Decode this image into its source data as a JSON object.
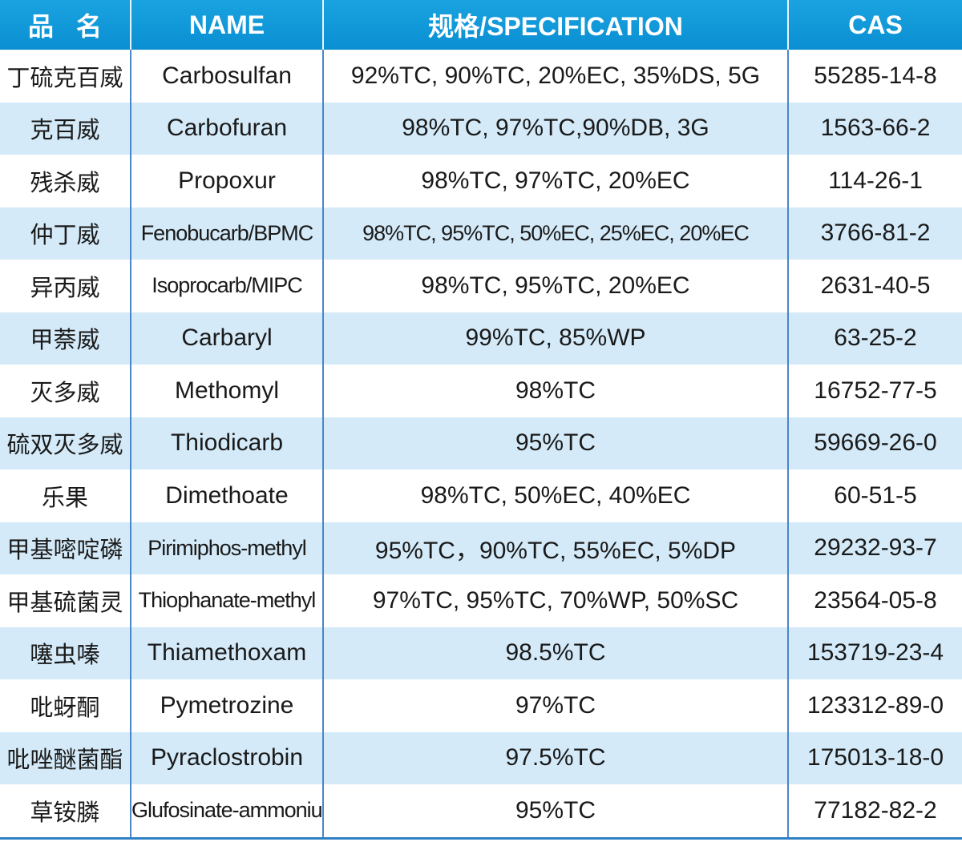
{
  "header": [
    "品名",
    "NAME",
    "规格/SPECIFICATION",
    "CAS"
  ],
  "colors": {
    "header": "#0a96d6",
    "alt_row": "#d4eaf8",
    "divider": "#4a86c8"
  },
  "rows": [
    [
      "丁硫克百威",
      "Carbosulfan",
      "92%TC, 90%TC, 20%EC, 35%DS, 5G",
      "55285-14-8"
    ],
    [
      "克百威",
      "Carbofuran",
      "98%TC, 97%TC,90%DB, 3G",
      "1563-66-2"
    ],
    [
      "残杀威",
      "Propoxur",
      "98%TC, 97%TC, 20%EC",
      "114-26-1"
    ],
    [
      "仲丁威",
      "Fenobucarb/BPMC",
      "98%TC, 95%TC, 50%EC, 25%EC, 20%EC",
      "3766-81-2"
    ],
    [
      "异丙威",
      "Isoprocarb/MIPC",
      "98%TC, 95%TC, 20%EC",
      "2631-40-5"
    ],
    [
      "甲萘威",
      "Carbaryl",
      "99%TC, 85%WP",
      "63-25-2"
    ],
    [
      "灭多威",
      "Methomyl",
      "98%TC",
      "16752-77-5"
    ],
    [
      "硫双灭多威",
      "Thiodicarb",
      "95%TC",
      "59669-26-0"
    ],
    [
      "乐果",
      "Dimethoate",
      "98%TC, 50%EC, 40%EC",
      "60-51-5"
    ],
    [
      "甲基嘧啶磷",
      "Pirimiphos-methyl",
      "95%TC，90%TC, 55%EC, 5%DP",
      "29232-93-7"
    ],
    [
      "甲基硫菌灵",
      "Thiophanate-methyl",
      "97%TC, 95%TC, 70%WP, 50%SC",
      "23564-05-8"
    ],
    [
      "噻虫嗪",
      "Thiamethoxam",
      "98.5%TC",
      "153719-23-4"
    ],
    [
      "吡蚜酮",
      "Pymetrozine",
      "97%TC",
      "123312-89-0"
    ],
    [
      "吡唑醚菌酯",
      "Pyraclostrobin",
      "97.5%TC",
      "175013-18-0"
    ],
    [
      "草铵膦",
      "Glufosinate-ammonium",
      "95%TC",
      "77182-82-2"
    ]
  ]
}
